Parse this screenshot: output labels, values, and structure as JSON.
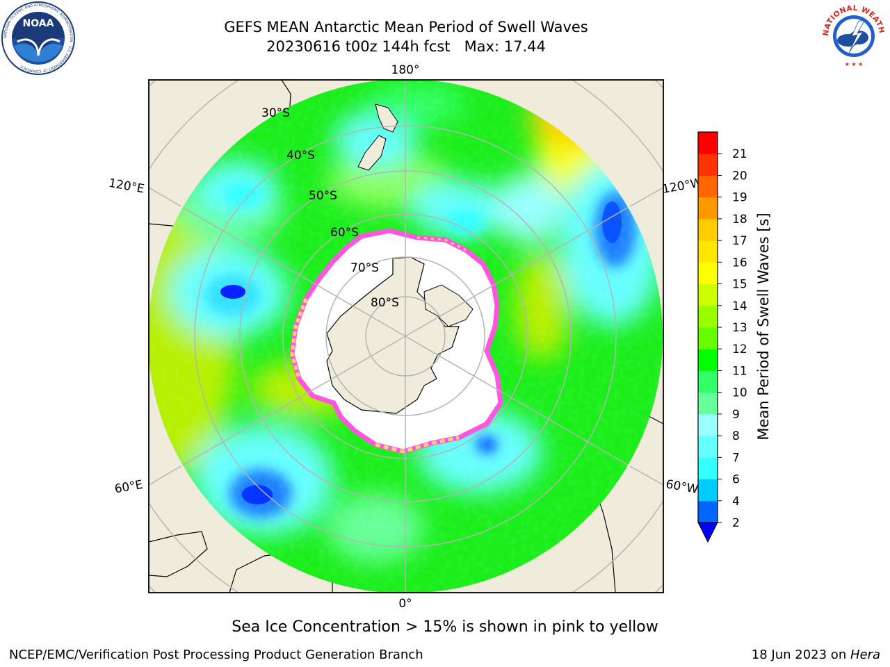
{
  "title": {
    "line1": "GEFS MEAN Antarctic Mean Period of Swell Waves",
    "line2": "20230616 t00z 144h fcst   Max: 17.44"
  },
  "map": {
    "projection": "south-polar-stereographic",
    "longitude_labels": {
      "top": "180°",
      "bottom": "0°",
      "upper_left": "120°E",
      "upper_right": "120°W",
      "lower_left": "60°E",
      "lower_right": "60°W"
    },
    "latitude_labels": [
      "30°S",
      "40°S",
      "50°S",
      "60°S",
      "70°S",
      "80°S"
    ],
    "colors": {
      "land": "#efecdc",
      "ice": "#ffffff",
      "grid": "#b4b4b4",
      "ice_edge_pink": "#ff55e0",
      "ice_edge_yellow": "#ffd46e"
    }
  },
  "colorbar": {
    "label": "Mean Period of Swell Waves [s]",
    "ticks": [
      "2",
      "4",
      "6",
      "7",
      "8",
      "9",
      "10",
      "11",
      "12",
      "13",
      "14",
      "15",
      "16",
      "17",
      "18",
      "19",
      "20",
      "21"
    ],
    "colors": [
      "#0066ff",
      "#00ccff",
      "#33ffff",
      "#66ffff",
      "#99ffff",
      "#66ff99",
      "#33ff66",
      "#00ff00",
      "#66ff00",
      "#99ff00",
      "#ccff00",
      "#ffff00",
      "#ffe600",
      "#ffcc00",
      "#ff9900",
      "#ff6600",
      "#ff3300",
      "#ff0000"
    ],
    "under_color": "#0000ff"
  },
  "note": "Sea Ice Concentration > 15% is shown in pink to yellow",
  "footer": {
    "credit": "NCEP/EMC/Verification Post Processing Product Generation Branch",
    "date_prefix": "18 Jun 2023 on ",
    "system": "Hera"
  },
  "logos": {
    "left": {
      "text": "NOAA",
      "ring": "NATIONAL OCEANIC AND ATMOSPHERIC ADMINISTRATION · U.S. DEPARTMENT OF COMMERCE"
    },
    "right": {
      "ring": "NATIONAL WEATHER SERVICE"
    }
  }
}
